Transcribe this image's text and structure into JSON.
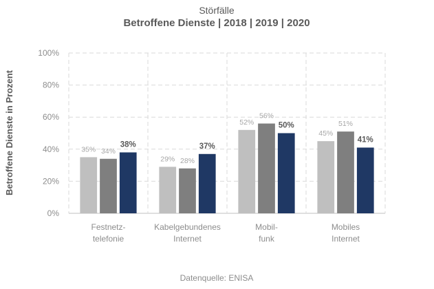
{
  "chart_data": {
    "type": "bar",
    "title": "Störfälle",
    "subtitle": "Betroffene Dienste | 2018 | 2019 | 2020",
    "ylabel": "Betroffene Dienste in Prozent",
    "xlabel": "",
    "ylim": [
      0,
      100
    ],
    "yticks": [
      0,
      20,
      40,
      60,
      80,
      100
    ],
    "ytick_labels": [
      "0%",
      "20%",
      "40%",
      "60%",
      "80%",
      "100%"
    ],
    "grid": true,
    "categories": [
      [
        "Festnetz-",
        "telefonie"
      ],
      [
        "Kabelgebundenes",
        "Internet"
      ],
      [
        "Mobil-",
        "funk"
      ],
      [
        "Mobiles",
        "Internet"
      ]
    ],
    "series": [
      {
        "name": "2018",
        "color": "#bfbfbf",
        "values": [
          35,
          29,
          52,
          45
        ],
        "labels": [
          "35%",
          "29%",
          "52%",
          "45%"
        ]
      },
      {
        "name": "2019",
        "color": "#7f7f7f",
        "values": [
          34,
          28,
          56,
          51
        ],
        "labels": [
          "34%",
          "28%",
          "56%",
          "51%"
        ]
      },
      {
        "name": "2020",
        "color": "#1f3864",
        "values": [
          38,
          37,
          50,
          41
        ],
        "labels": [
          "38%",
          "37%",
          "50%",
          "41%"
        ]
      }
    ],
    "source": "Datenquelle:  ENISA"
  }
}
